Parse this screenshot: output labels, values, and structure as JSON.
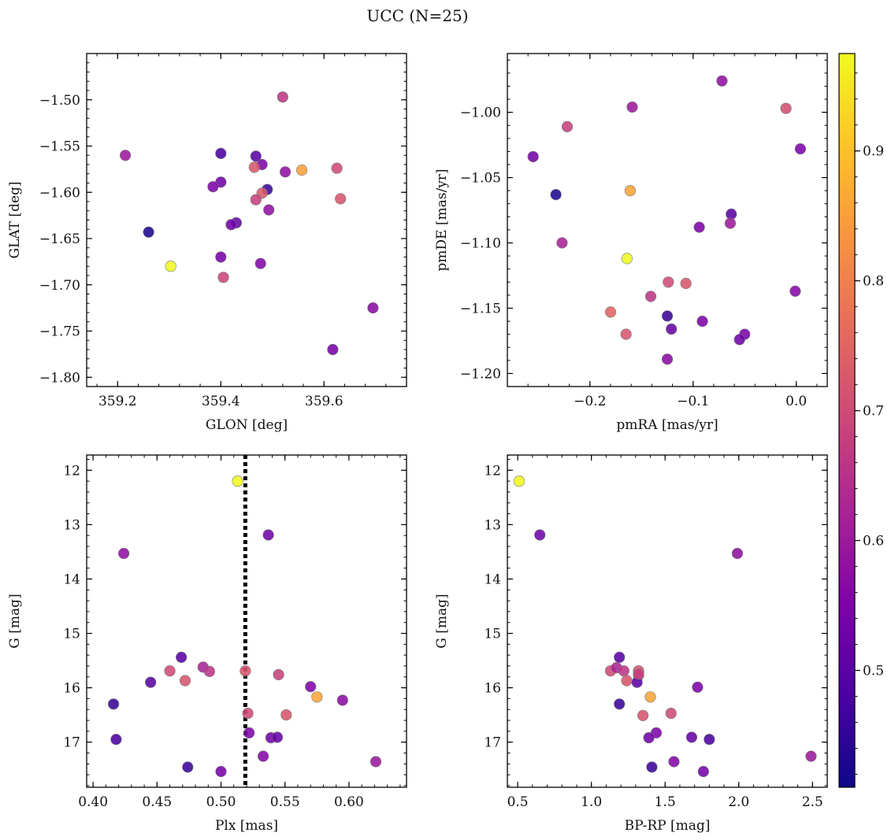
{
  "suptitle": "UCC (N=25)",
  "colorbar": {
    "range": [
      0.41,
      0.975
    ],
    "ticks": [
      0.5,
      0.6,
      0.7,
      0.8,
      0.9
    ],
    "tick_labels": [
      "0.5",
      "0.6",
      "0.7",
      "0.8",
      "0.9"
    ],
    "colormap": "plasma"
  },
  "chart_data": [
    {
      "type": "scatter",
      "name": "glon-glat",
      "xlabel": "GLON [deg]",
      "ylabel": "GLAT [deg]",
      "xlim": [
        359.14,
        359.76
      ],
      "ylim": [
        -1.81,
        -1.45
      ],
      "xticks": [
        359.2,
        359.4,
        359.6
      ],
      "xtick_labels": [
        "359.2",
        "359.4",
        "359.6"
      ],
      "yticks": [
        -1.8,
        -1.75,
        -1.7,
        -1.65,
        -1.6,
        -1.55,
        -1.5
      ],
      "ytick_labels": [
        "−1.80",
        "−1.75",
        "−1.70",
        "−1.65",
        "−1.60",
        "−1.55",
        "−1.50"
      ],
      "x": [
        359.52,
        359.215,
        359.4,
        359.468,
        359.48,
        359.465,
        359.557,
        359.625,
        359.525,
        359.4,
        359.385,
        359.49,
        359.48,
        359.632,
        359.468,
        359.493,
        359.43,
        359.42,
        359.26,
        359.303,
        359.4,
        359.477,
        359.405,
        359.695,
        359.617
      ],
      "y": [
        -1.497,
        -1.56,
        -1.558,
        -1.561,
        -1.57,
        -1.573,
        -1.576,
        -1.574,
        -1.578,
        -1.589,
        -1.594,
        -1.597,
        -1.601,
        -1.607,
        -1.608,
        -1.619,
        -1.633,
        -1.635,
        -1.643,
        -1.68,
        -1.67,
        -1.677,
        -1.692,
        -1.725,
        -1.77
      ],
      "c": [
        0.66,
        0.6,
        0.48,
        0.5,
        0.55,
        0.72,
        0.85,
        0.7,
        0.58,
        0.53,
        0.55,
        0.46,
        0.73,
        0.72,
        0.68,
        0.58,
        0.52,
        0.53,
        0.43,
        0.975,
        0.54,
        0.56,
        0.69,
        0.57,
        0.54
      ]
    },
    {
      "type": "scatter",
      "name": "pmra-pmde",
      "xlabel": "pmRA [mas/yr]",
      "ylabel": "pmDE [mas/yr]",
      "xlim": [
        -0.28,
        0.03
      ],
      "ylim": [
        -1.21,
        -0.955
      ],
      "xticks": [
        -0.2,
        -0.1,
        0.0
      ],
      "xtick_labels": [
        "−0.2",
        "−0.1",
        "0.0"
      ],
      "yticks": [
        -1.2,
        -1.15,
        -1.1,
        -1.05,
        -1.0
      ],
      "ytick_labels": [
        "−1.20",
        "−1.15",
        "−1.10",
        "−1.05",
        "−1.00"
      ],
      "x": [
        -0.072,
        -0.159,
        -0.01,
        -0.222,
        0.004,
        -0.255,
        -0.161,
        -0.233,
        -0.063,
        -0.094,
        -0.064,
        -0.227,
        -0.164,
        -0.124,
        -0.107,
        -0.001,
        -0.141,
        -0.18,
        -0.125,
        -0.091,
        -0.121,
        -0.05,
        -0.055,
        -0.165,
        -0.125
      ],
      "y": [
        -0.976,
        -0.996,
        -0.997,
        -1.011,
        -1.028,
        -1.034,
        -1.06,
        -1.063,
        -1.078,
        -1.088,
        -1.085,
        -1.1,
        -1.112,
        -1.13,
        -1.131,
        -1.137,
        -1.141,
        -1.153,
        -1.156,
        -1.16,
        -1.166,
        -1.17,
        -1.174,
        -1.17,
        -1.189
      ],
      "c": [
        0.58,
        0.6,
        0.71,
        0.68,
        0.55,
        0.53,
        0.86,
        0.43,
        0.5,
        0.55,
        0.6,
        0.62,
        0.975,
        0.7,
        0.72,
        0.56,
        0.66,
        0.75,
        0.46,
        0.55,
        0.52,
        0.54,
        0.53,
        0.72,
        0.57
      ]
    },
    {
      "type": "scatter",
      "name": "plx-g",
      "xlabel": "Plx [mas]",
      "ylabel": "G [mag]",
      "xlim": [
        0.395,
        0.645
      ],
      "ylim": [
        17.83,
        11.72
      ],
      "inverted_y": true,
      "xticks": [
        0.4,
        0.45,
        0.5,
        0.55,
        0.6
      ],
      "xtick_labels": [
        "0.40",
        "0.45",
        "0.50",
        "0.55",
        "0.60"
      ],
      "yticks": [
        12,
        13,
        14,
        15,
        16,
        17
      ],
      "ytick_labels": [
        "12",
        "13",
        "14",
        "15",
        "16",
        "17"
      ],
      "vline": 0.519,
      "x": [
        0.513,
        0.537,
        0.424,
        0.469,
        0.46,
        0.486,
        0.491,
        0.519,
        0.545,
        0.472,
        0.445,
        0.57,
        0.575,
        0.595,
        0.416,
        0.551,
        0.521,
        0.522,
        0.539,
        0.544,
        0.418,
        0.533,
        0.621,
        0.474,
        0.5
      ],
      "y": [
        12.2,
        13.19,
        13.53,
        15.44,
        15.69,
        15.62,
        15.7,
        15.69,
        15.76,
        15.87,
        15.9,
        15.98,
        16.17,
        16.23,
        16.3,
        16.5,
        16.47,
        16.83,
        16.92,
        16.91,
        16.95,
        17.26,
        17.36,
        17.46,
        17.54
      ],
      "c": [
        0.975,
        0.53,
        0.58,
        0.5,
        0.7,
        0.62,
        0.66,
        0.72,
        0.68,
        0.72,
        0.5,
        0.55,
        0.86,
        0.57,
        0.46,
        0.72,
        0.7,
        0.55,
        0.53,
        0.52,
        0.48,
        0.56,
        0.6,
        0.46,
        0.54
      ]
    },
    {
      "type": "scatter",
      "name": "bprp-g",
      "xlabel": "BP-RP [mag]",
      "ylabel": "G [mag]",
      "xlim": [
        0.43,
        2.6
      ],
      "ylim": [
        17.83,
        11.72
      ],
      "inverted_y": true,
      "xticks": [
        0.5,
        1.0,
        1.5,
        2.0,
        2.5
      ],
      "xtick_labels": [
        "0.5",
        "1.0",
        "1.5",
        "2.0",
        "2.5"
      ],
      "yticks": [
        12,
        13,
        14,
        15,
        16,
        17
      ],
      "ytick_labels": [
        "12",
        "13",
        "14",
        "15",
        "16",
        "17"
      ],
      "x": [
        0.51,
        0.65,
        1.99,
        1.19,
        1.13,
        1.17,
        1.22,
        1.32,
        1.32,
        1.24,
        1.31,
        1.72,
        1.4,
        1.19,
        1.35,
        1.54,
        1.44,
        1.39,
        1.68,
        1.8,
        2.49,
        1.56,
        1.41,
        1.76,
        1.32
      ],
      "y": [
        12.2,
        13.19,
        13.53,
        15.44,
        15.69,
        15.63,
        15.69,
        15.69,
        15.77,
        15.87,
        15.9,
        15.99,
        16.17,
        16.3,
        16.51,
        16.47,
        16.83,
        16.92,
        16.91,
        16.95,
        17.26,
        17.36,
        17.46,
        17.54,
        15.75
      ],
      "c": [
        0.975,
        0.53,
        0.58,
        0.5,
        0.7,
        0.62,
        0.66,
        0.72,
        0.68,
        0.72,
        0.5,
        0.55,
        0.86,
        0.46,
        0.72,
        0.7,
        0.55,
        0.53,
        0.52,
        0.48,
        0.6,
        0.56,
        0.46,
        0.54,
        0.68
      ]
    }
  ]
}
